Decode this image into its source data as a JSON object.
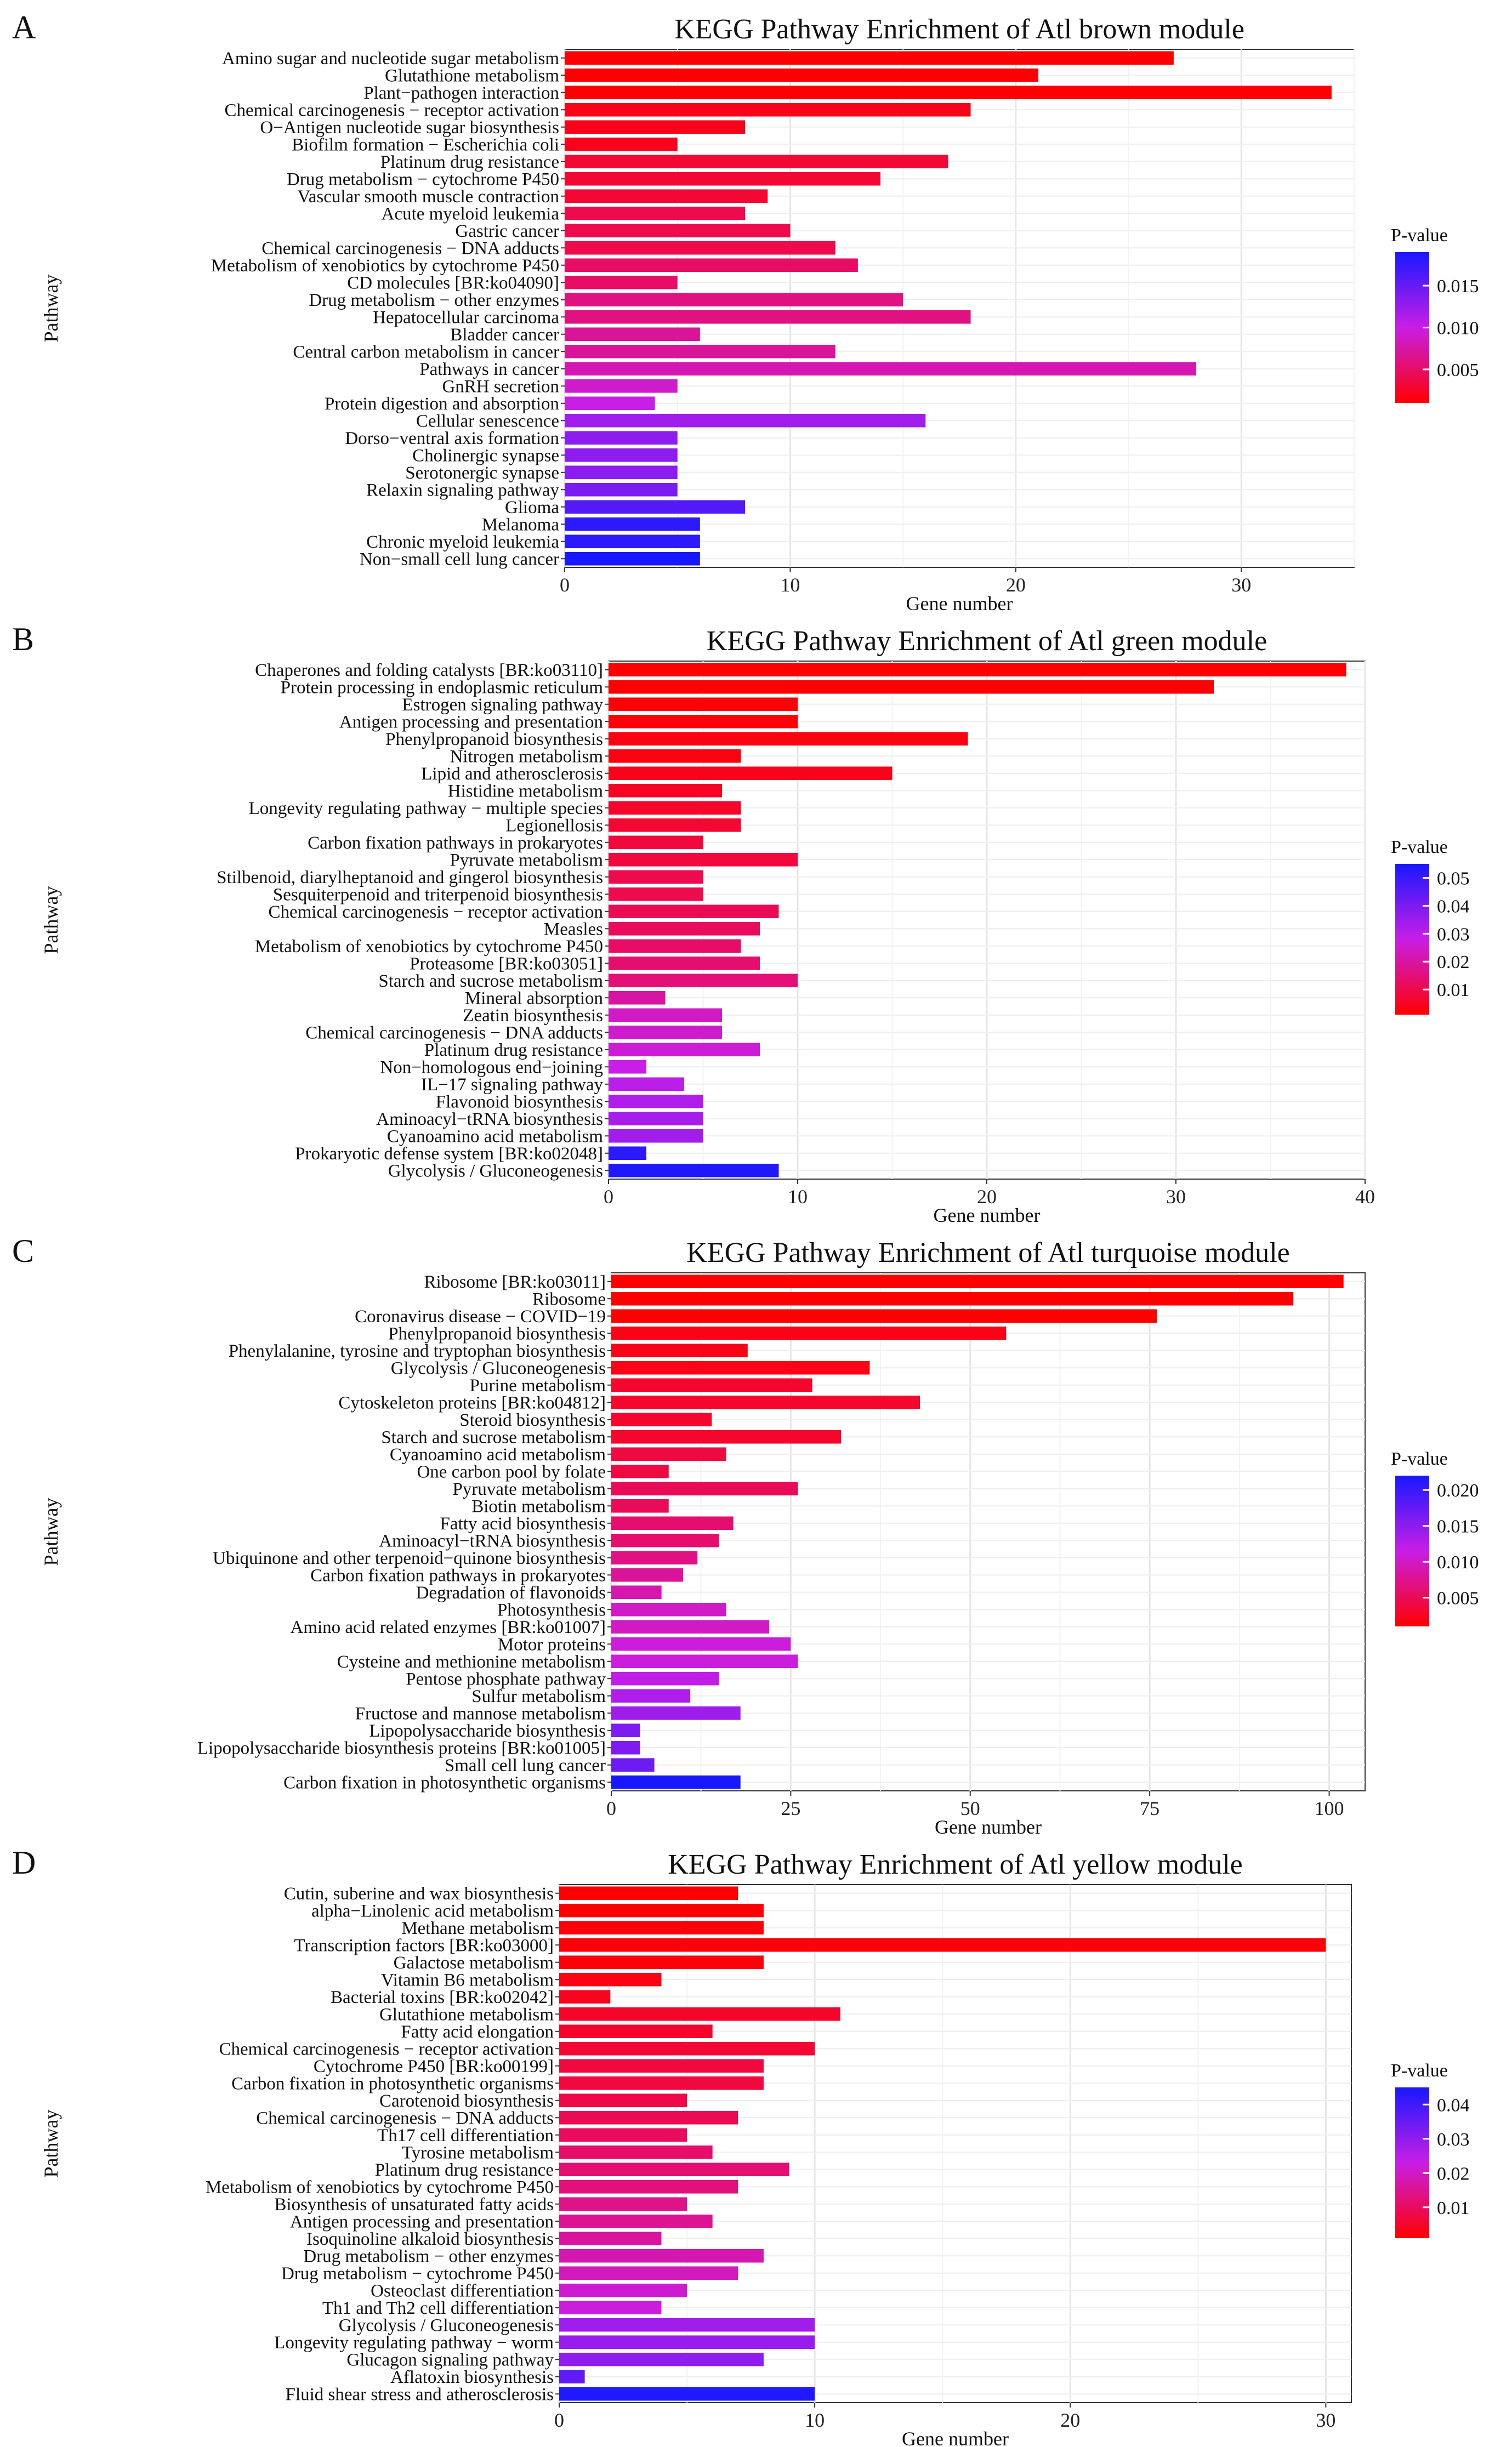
{
  "chart_data": [
    {
      "type": "bar",
      "panel_label": "A",
      "title": "KEGG Pathway Enrichment of Atl brown module",
      "xlabel": "Gene number",
      "ylabel": "Pathway",
      "xlim": [
        0,
        35
      ],
      "xticks": [
        0,
        10,
        20,
        30
      ],
      "legend_title": "P-value",
      "legend_ticks": [
        0.005,
        0.01,
        0.015
      ],
      "legend_tick_labels": [
        "0.005",
        "0.010",
        "0.015"
      ],
      "pvalue_range": [
        0.001,
        0.019
      ],
      "legend_position": "right",
      "color_low": "#ff0000",
      "color_mid": "#c81ee6",
      "color_high": "#1818ff",
      "categories": [
        "Amino sugar and nucleotide sugar metabolism",
        "Glutathione metabolism",
        "Plant−pathogen interaction",
        "Chemical carcinogenesis − receptor activation",
        "O−Antigen nucleotide sugar biosynthesis",
        "Biofilm formation − Escherichia coli",
        "Platinum drug resistance",
        "Drug metabolism − cytochrome P450",
        "Vascular smooth muscle contraction",
        "Acute myeloid leukemia",
        "Gastric cancer",
        "Chemical carcinogenesis − DNA adducts",
        "Metabolism of xenobiotics by cytochrome P450",
        "CD molecules [BR:ko04090]",
        "Drug metabolism − other enzymes",
        "Hepatocellular carcinoma",
        "Bladder cancer",
        "Central carbon metabolism in cancer",
        "Pathways in cancer",
        "GnRH secretion",
        "Protein digestion and absorption",
        "Cellular senescence",
        "Dorso−ventral axis formation",
        "Cholinergic synapse",
        "Serotonergic synapse",
        "Relaxin signaling pathway",
        "Glioma",
        "Melanoma",
        "Chronic myeloid leukemia",
        "Non−small cell lung cancer"
      ],
      "values": [
        27,
        21,
        34,
        18,
        8,
        5,
        17,
        14,
        9,
        8,
        10,
        12,
        13,
        5,
        15,
        18,
        6,
        12,
        28,
        5,
        4,
        16,
        5,
        5,
        5,
        5,
        8,
        6,
        6,
        6
      ],
      "pvalues": [
        0.001,
        0.001,
        0.001,
        0.002,
        0.002,
        0.002,
        0.003,
        0.003,
        0.003,
        0.004,
        0.004,
        0.004,
        0.005,
        0.005,
        0.006,
        0.006,
        0.007,
        0.007,
        0.008,
        0.009,
        0.01,
        0.012,
        0.013,
        0.013,
        0.013,
        0.014,
        0.016,
        0.018,
        0.018,
        0.019
      ]
    },
    {
      "type": "bar",
      "panel_label": "B",
      "title": "KEGG Pathway Enrichment of Atl green module",
      "xlabel": "Gene number",
      "ylabel": "Pathway",
      "xlim": [
        0,
        40
      ],
      "xticks": [
        0,
        10,
        20,
        30,
        40
      ],
      "legend_title": "P-value",
      "legend_ticks": [
        0.01,
        0.02,
        0.03,
        0.04,
        0.05
      ],
      "legend_tick_labels": [
        "0.01",
        "0.02",
        "0.03",
        "0.04",
        "0.05"
      ],
      "pvalue_range": [
        0.001,
        0.055
      ],
      "legend_position": "right",
      "color_low": "#ff0000",
      "color_mid": "#c81ee6",
      "color_high": "#1818ff",
      "categories": [
        "Chaperones and folding catalysts [BR:ko03110]",
        "Protein processing in endoplasmic reticulum",
        "Estrogen signaling pathway",
        "Antigen processing and presentation",
        "Phenylpropanoid biosynthesis",
        "Nitrogen metabolism",
        "Lipid and atherosclerosis",
        "Histidine metabolism",
        "Longevity regulating pathway − multiple species",
        "Legionellosis",
        "Carbon fixation pathways in prokaryotes",
        "Pyruvate metabolism",
        "Stilbenoid, diarylheptanoid and gingerol biosynthesis",
        "Sesquiterpenoid and triterpenoid biosynthesis",
        "Chemical carcinogenesis − receptor activation",
        "Measles",
        "Metabolism of xenobiotics by cytochrome P450",
        "Proteasome [BR:ko03051]",
        "Starch and sucrose metabolism",
        "Mineral absorption",
        "Zeatin biosynthesis",
        "Chemical carcinogenesis − DNA adducts",
        "Platinum drug resistance",
        "Non−homologous end−joining",
        "IL−17 signaling pathway",
        "Flavonoid biosynthesis",
        "Aminoacyl−tRNA biosynthesis",
        "Cyanoamino acid metabolism",
        "Prokaryotic defense system [BR:ko02048]",
        "Glycolysis / Gluconeogenesis"
      ],
      "values": [
        39,
        32,
        10,
        10,
        19,
        7,
        15,
        6,
        7,
        7,
        5,
        10,
        5,
        5,
        9,
        8,
        7,
        8,
        10,
        3,
        6,
        6,
        8,
        2,
        4,
        5,
        5,
        5,
        2,
        9
      ],
      "pvalues": [
        0.001,
        0.001,
        0.002,
        0.002,
        0.003,
        0.003,
        0.004,
        0.005,
        0.006,
        0.007,
        0.008,
        0.008,
        0.01,
        0.01,
        0.011,
        0.012,
        0.013,
        0.014,
        0.015,
        0.02,
        0.024,
        0.025,
        0.026,
        0.028,
        0.03,
        0.032,
        0.033,
        0.034,
        0.052,
        0.054
      ]
    },
    {
      "type": "bar",
      "panel_label": "C",
      "title": "KEGG Pathway Enrichment of Atl turquoise module",
      "xlabel": "Gene number",
      "ylabel": "Pathway",
      "xlim": [
        0,
        105
      ],
      "xticks": [
        0,
        25,
        50,
        75,
        100
      ],
      "legend_title": "P-value",
      "legend_ticks": [
        0.005,
        0.01,
        0.015,
        0.02
      ],
      "legend_tick_labels": [
        "0.005",
        "0.010",
        "0.015",
        "0.020"
      ],
      "pvalue_range": [
        0.001,
        0.022
      ],
      "legend_position": "right",
      "color_low": "#ff0000",
      "color_mid": "#c81ee6",
      "color_high": "#1818ff",
      "categories": [
        "Ribosome [BR:ko03011]",
        "Ribosome",
        "Coronavirus disease − COVID−19",
        "Phenylpropanoid biosynthesis",
        "Phenylalanine, tyrosine and tryptophan biosynthesis",
        "Glycolysis / Gluconeogenesis",
        "Purine metabolism",
        "Cytoskeleton proteins [BR:ko04812]",
        "Steroid biosynthesis",
        "Starch and sucrose metabolism",
        "Cyanoamino acid metabolism",
        "One carbon pool by folate",
        "Pyruvate metabolism",
        "Biotin metabolism",
        "Fatty acid biosynthesis",
        "Aminoacyl−tRNA biosynthesis",
        "Ubiquinone and other terpenoid−quinone biosynthesis",
        "Carbon fixation pathways in prokaryotes",
        "Degradation of flavonoids",
        "Photosynthesis",
        "Amino acid related enzymes [BR:ko01007]",
        "Motor proteins",
        "Cysteine and methionine metabolism",
        "Pentose phosphate pathway",
        "Sulfur metabolism",
        "Fructose and mannose metabolism",
        "Lipopolysaccharide biosynthesis",
        "Lipopolysaccharide biosynthesis proteins [BR:ko01005]",
        "Small cell lung cancer",
        "Carbon fixation in photosynthetic organisms"
      ],
      "values": [
        102,
        95,
        76,
        55,
        19,
        36,
        28,
        43,
        14,
        32,
        16,
        8,
        26,
        8,
        17,
        15,
        12,
        10,
        7,
        16,
        22,
        25,
        26,
        15,
        11,
        18,
        4,
        4,
        6,
        18
      ],
      "pvalues": [
        0.001,
        0.001,
        0.001,
        0.002,
        0.002,
        0.002,
        0.003,
        0.003,
        0.003,
        0.003,
        0.004,
        0.004,
        0.005,
        0.005,
        0.006,
        0.006,
        0.007,
        0.008,
        0.009,
        0.01,
        0.01,
        0.011,
        0.011,
        0.012,
        0.013,
        0.014,
        0.016,
        0.016,
        0.017,
        0.022
      ]
    },
    {
      "type": "bar",
      "panel_label": "D",
      "title": "KEGG Pathway Enrichment of Atl yellow module",
      "xlabel": "Gene number",
      "ylabel": "Pathway",
      "xlim": [
        0,
        31
      ],
      "xticks": [
        0,
        10,
        20,
        30
      ],
      "legend_title": "P-value",
      "legend_ticks": [
        0.01,
        0.02,
        0.03,
        0.04
      ],
      "legend_tick_labels": [
        "0.01",
        "0.02",
        "0.03",
        "0.04"
      ],
      "pvalue_range": [
        0.001,
        0.045
      ],
      "legend_position": "right",
      "color_low": "#ff0000",
      "color_mid": "#c81ee6",
      "color_high": "#1818ff",
      "categories": [
        "Cutin, suberine and wax biosynthesis",
        "alpha−Linolenic acid metabolism",
        "Methane metabolism",
        "Transcription factors [BR:ko03000]",
        "Galactose metabolism",
        "Vitamin B6 metabolism",
        "Bacterial toxins [BR:ko02042]",
        "Glutathione metabolism",
        "Fatty acid elongation",
        "Chemical carcinogenesis − receptor activation",
        "Cytochrome P450 [BR:ko00199]",
        "Carbon fixation in photosynthetic organisms",
        "Carotenoid biosynthesis",
        "Chemical carcinogenesis − DNA adducts",
        "Th17 cell differentiation",
        "Tyrosine metabolism",
        "Platinum drug resistance",
        "Metabolism of xenobiotics by cytochrome P450",
        "Biosynthesis of unsaturated fatty acids",
        "Antigen processing and presentation",
        "Isoquinoline alkaloid biosynthesis",
        "Drug metabolism − other enzymes",
        "Drug metabolism − cytochrome P450",
        "Osteoclast differentiation",
        "Th1 and Th2 cell differentiation",
        "Glycolysis / Gluconeogenesis",
        "Longevity regulating pathway − worm",
        "Glucagon signaling pathway",
        "Aflatoxin biosynthesis",
        "Fluid shear stress and atherosclerosis"
      ],
      "values": [
        7,
        8,
        8,
        30,
        8,
        4,
        2,
        11,
        6,
        10,
        8,
        8,
        5,
        7,
        5,
        6,
        9,
        7,
        5,
        6,
        4,
        8,
        7,
        5,
        4,
        10,
        10,
        8,
        1,
        10
      ],
      "pvalues": [
        0.001,
        0.001,
        0.002,
        0.002,
        0.002,
        0.003,
        0.004,
        0.005,
        0.005,
        0.006,
        0.007,
        0.007,
        0.008,
        0.009,
        0.01,
        0.011,
        0.012,
        0.013,
        0.014,
        0.015,
        0.016,
        0.018,
        0.019,
        0.021,
        0.022,
        0.028,
        0.029,
        0.03,
        0.036,
        0.044
      ]
    }
  ]
}
